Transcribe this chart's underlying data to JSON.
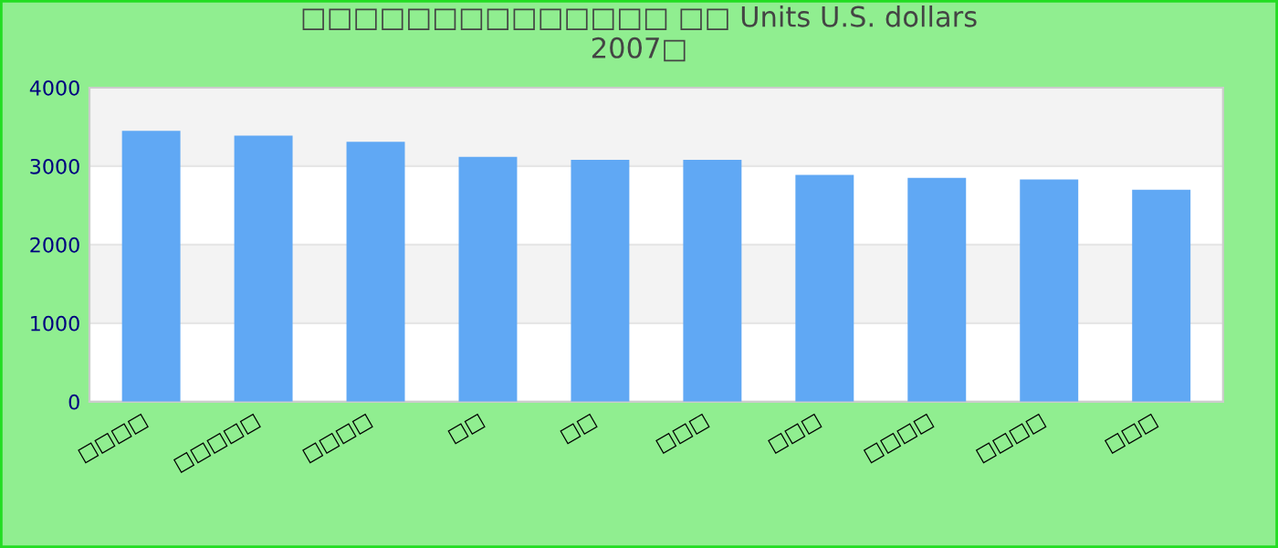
{
  "chart_data": {
    "type": "bar",
    "title": "□□□□□□□□□□□□□□ □□ Units U.S. dollars\n2007□",
    "categories": [
      "□□□□",
      "□□□□□",
      "□□□□",
      "□□",
      "□□",
      "□□□",
      "□□□",
      "□□□□",
      "□□□□",
      "□□□"
    ],
    "values": [
      3450,
      3390,
      3310,
      3120,
      3080,
      3080,
      2890,
      2850,
      2830,
      2700
    ],
    "color": "#60a8f4",
    "ylim": [
      0,
      4000
    ],
    "yticks": [
      0,
      1000,
      2000,
      3000,
      4000
    ],
    "grid": "y",
    "legend": false
  }
}
